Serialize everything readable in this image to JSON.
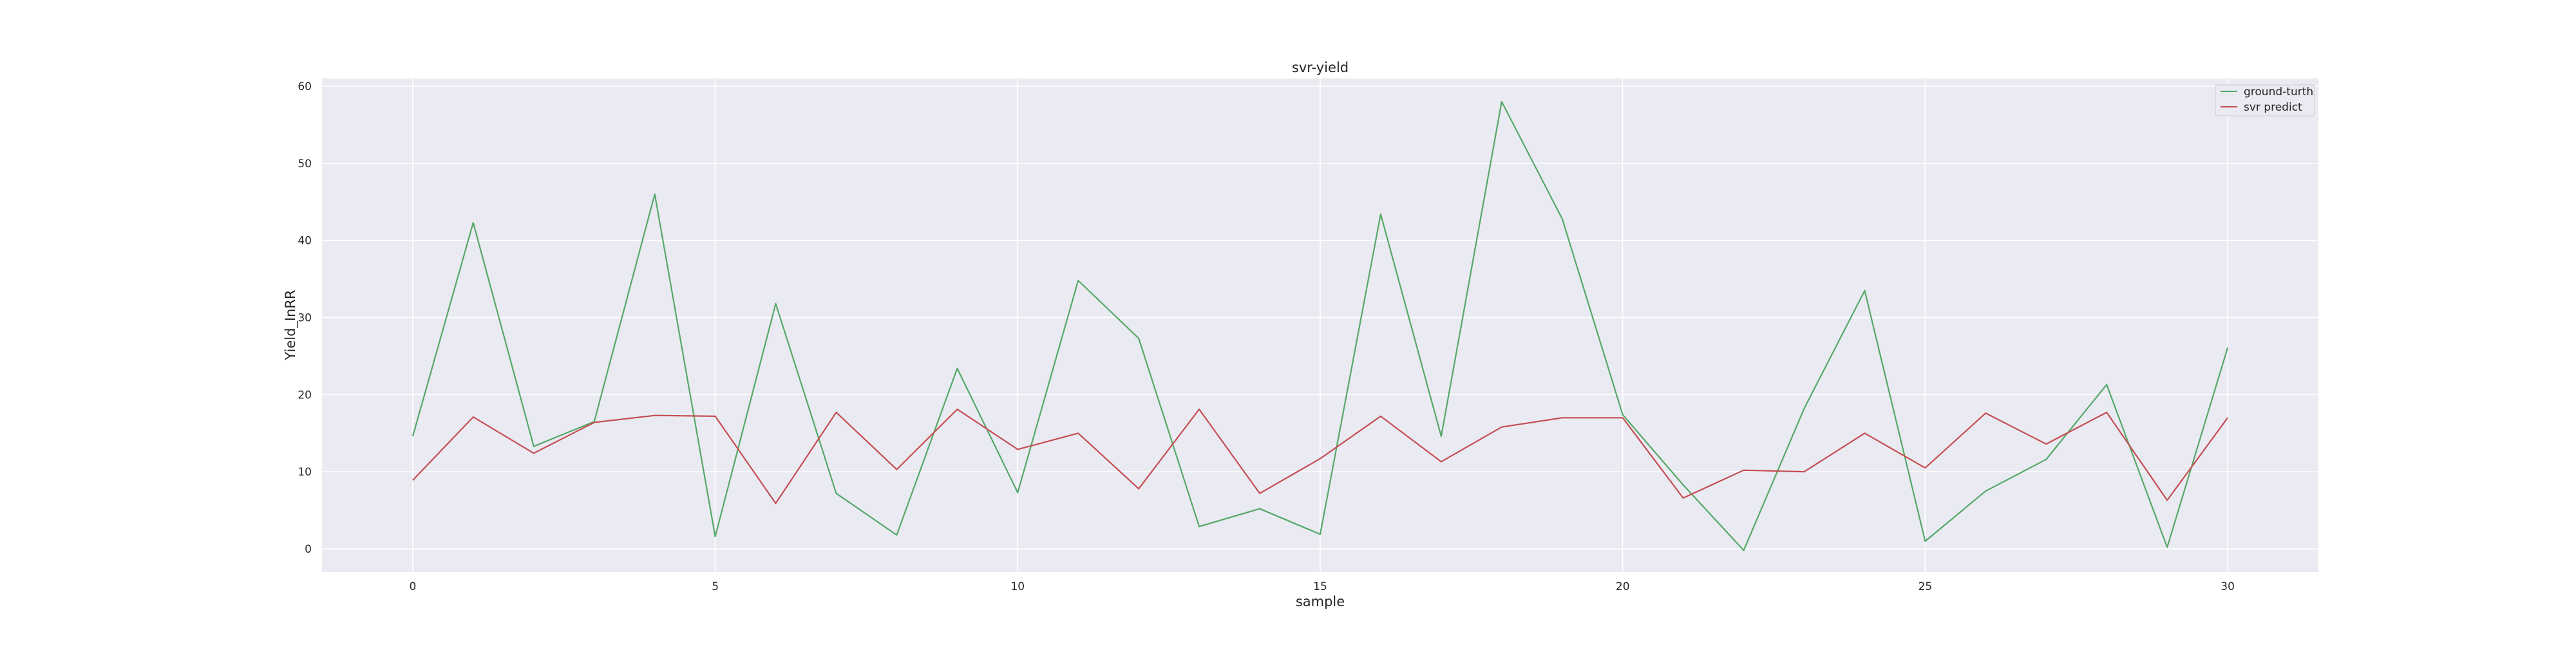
{
  "chart_data": {
    "type": "line",
    "title": "svr-yield",
    "xlabel": "sample",
    "ylabel": "Yield_InRR",
    "x": [
      0,
      1,
      2,
      3,
      4,
      5,
      6,
      7,
      8,
      9,
      10,
      11,
      12,
      13,
      14,
      15,
      16,
      17,
      18,
      19,
      20,
      21,
      22,
      23,
      24,
      25,
      26,
      27,
      28,
      29,
      30
    ],
    "series": [
      {
        "name": "ground-turth",
        "color": "#55a868",
        "values": [
          14.6,
          42.3,
          13.3,
          16.5,
          46.0,
          1.6,
          31.8,
          7.2,
          1.8,
          23.4,
          7.3,
          34.8,
          27.3,
          2.9,
          5.2,
          1.9,
          43.4,
          14.6,
          58.0,
          42.8,
          17.4,
          8.3,
          -0.2,
          18.2,
          33.5,
          1.0,
          7.5,
          11.6,
          21.3,
          0.2,
          26.1
        ]
      },
      {
        "name": "svr predict",
        "color": "#c44e52",
        "values": [
          8.9,
          17.1,
          12.4,
          16.4,
          17.3,
          17.2,
          5.9,
          17.7,
          10.3,
          18.1,
          12.9,
          15.0,
          7.8,
          18.1,
          7.2,
          11.7,
          17.2,
          11.3,
          15.8,
          17.0,
          17.0,
          6.6,
          10.2,
          10.0,
          15.0,
          10.5,
          17.6,
          13.6,
          17.7,
          6.3,
          17.0
        ]
      }
    ],
    "xticks": [
      0,
      5,
      10,
      15,
      20,
      25,
      30
    ],
    "yticks": [
      0,
      10,
      20,
      30,
      40,
      50,
      60
    ],
    "xlim": [
      -1.5,
      31.5
    ],
    "ylim": [
      -3,
      61
    ],
    "grid": true,
    "legend_position": "top-right",
    "background": "#eaeaf2"
  }
}
